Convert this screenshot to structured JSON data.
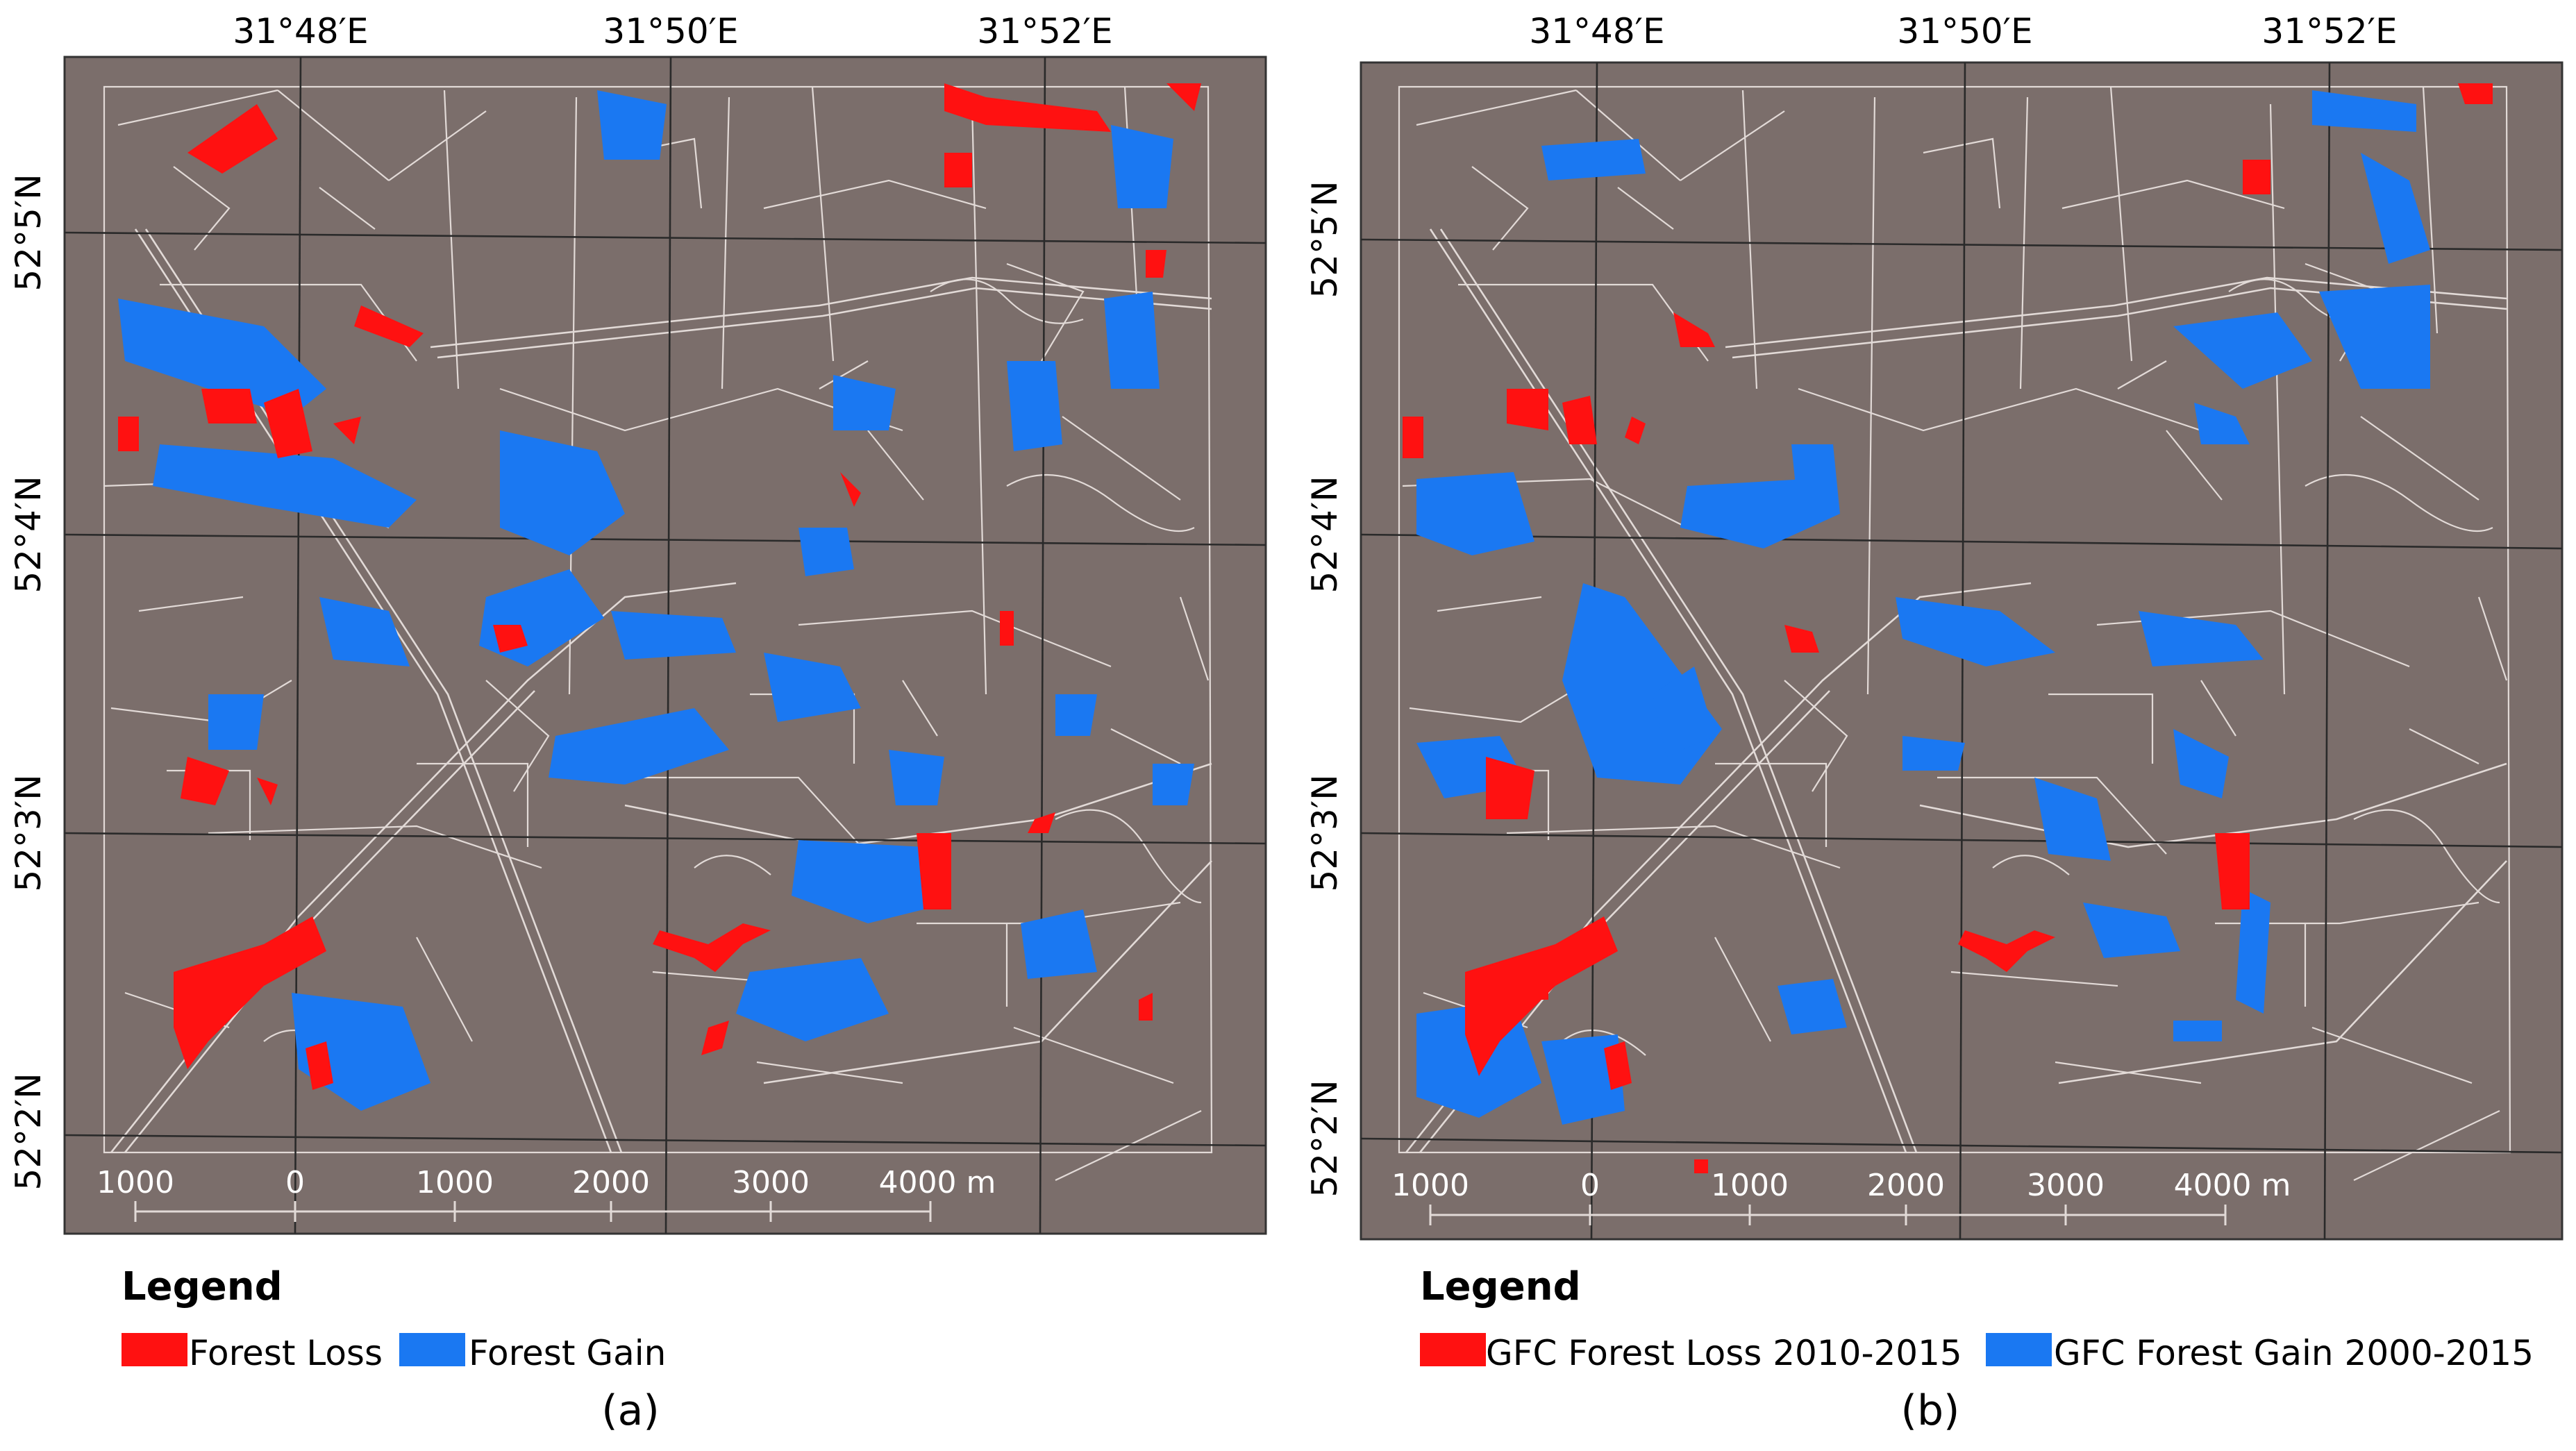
{
  "colors": {
    "background": "#7b6e6b",
    "loss": "#ff1111",
    "gain": "#1a78f2",
    "lines": "#e2dad7",
    "grid": "#2a2a2a"
  },
  "panels": [
    {
      "id": "a",
      "caption": "(a)",
      "legend_title": "Legend",
      "legend": [
        {
          "label": "Forest Loss",
          "color_key": "loss"
        },
        {
          "label": "Forest Gain",
          "color_key": "gain"
        }
      ]
    },
    {
      "id": "b",
      "caption": "(b)",
      "legend_title": "Legend",
      "legend": [
        {
          "label": "GFC Forest Loss 2010-2015",
          "color_key": "loss"
        },
        {
          "label": "GFC Forest Gain 2000-2015",
          "color_key": "gain"
        }
      ]
    }
  ],
  "lon_ticks": [
    "31°48′E",
    "31°50′E",
    "31°52′E"
  ],
  "lat_ticks": [
    "52°5′N",
    "52°4′N",
    "52°3′N",
    "52°2′N"
  ],
  "scale_bar": {
    "labels": [
      "1000",
      "0",
      "1000",
      "2000",
      "3000",
      "4000 m"
    ]
  }
}
